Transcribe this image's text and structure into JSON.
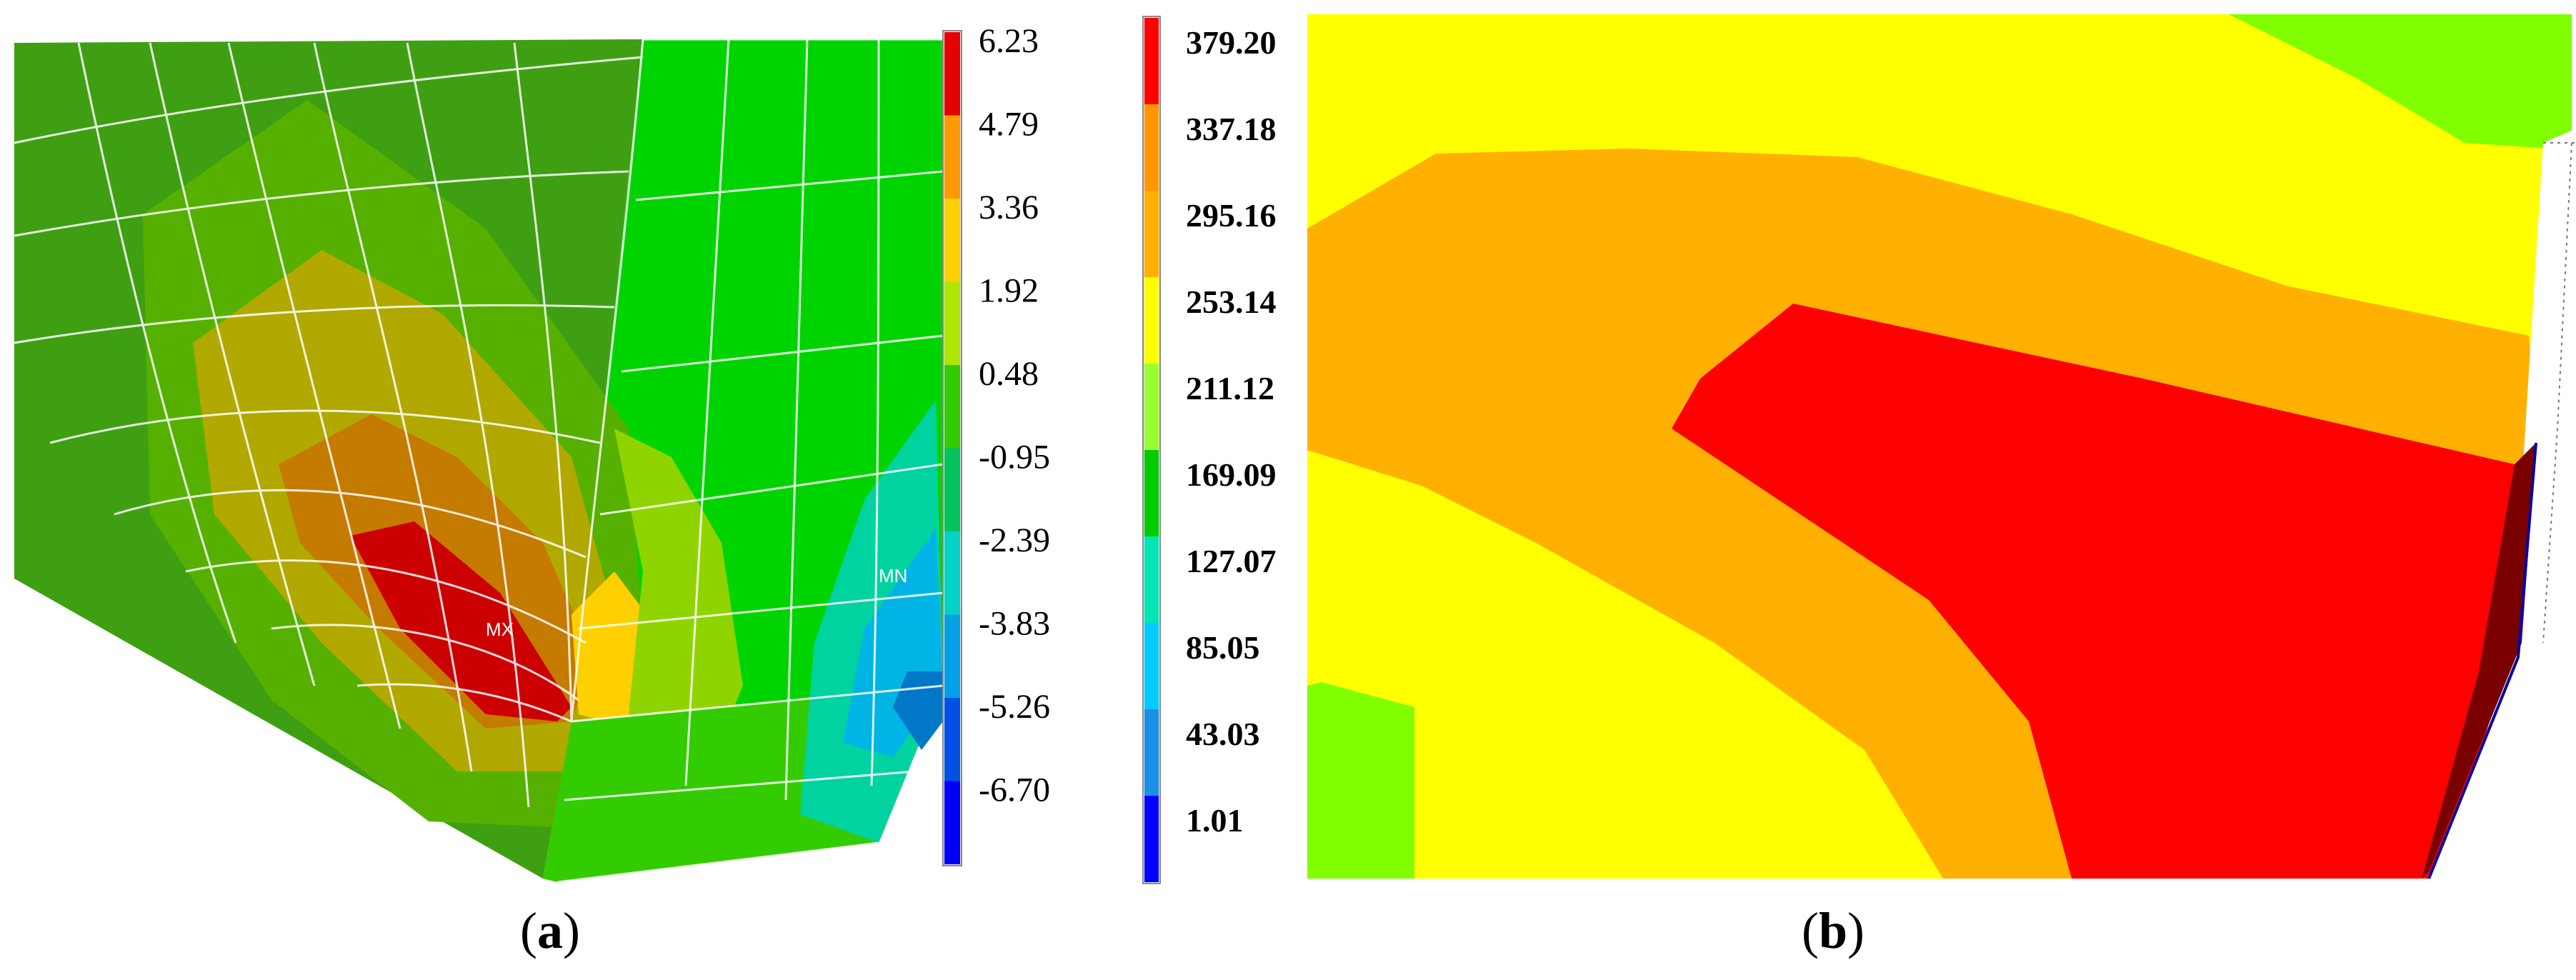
{
  "panels": [
    {
      "id": "a",
      "caption_open": "(",
      "caption_letter": "a",
      "caption_close": ")",
      "legend": [
        "6.23",
        "4.79",
        "3.36",
        "1.92",
        "0.48",
        "-0.95",
        "-2.39",
        "-3.83",
        "-5.26",
        "-6.70"
      ],
      "legend_colors": [
        "#e60000",
        "#ff9a00",
        "#ffd000",
        "#aee600",
        "#33cc00",
        "#00c45a",
        "#00d2c8",
        "#00a0e6",
        "#0050e6",
        "#0000ff"
      ],
      "markers": {
        "max": "MX",
        "min": "MN"
      }
    },
    {
      "id": "b",
      "caption_open": "(",
      "caption_letter": "b",
      "caption_close": ")",
      "legend": [
        "379.20",
        "337.18",
        "295.16",
        "253.14",
        "211.12",
        "169.09",
        "127.07",
        "85.05",
        "43.03",
        "1.01"
      ],
      "legend_colors": [
        "#ff0000",
        "#ff9800",
        "#ffb000",
        "#ffff00",
        "#99ff33",
        "#00cc00",
        "#00e6b4",
        "#00ccff",
        "#1a90e8",
        "#0000ff"
      ]
    }
  ],
  "colors": {
    "green_dark": "#3f9f12",
    "green_mid": "#55b000",
    "green_bright": "#00d400",
    "yellow_green": "#a0c800",
    "olive": "#b1a800",
    "orange_brown": "#c57a00",
    "red": "#cc0000",
    "orange": "#ffb000",
    "yellow": "#ffff00",
    "lime": "#80ff00"
  }
}
